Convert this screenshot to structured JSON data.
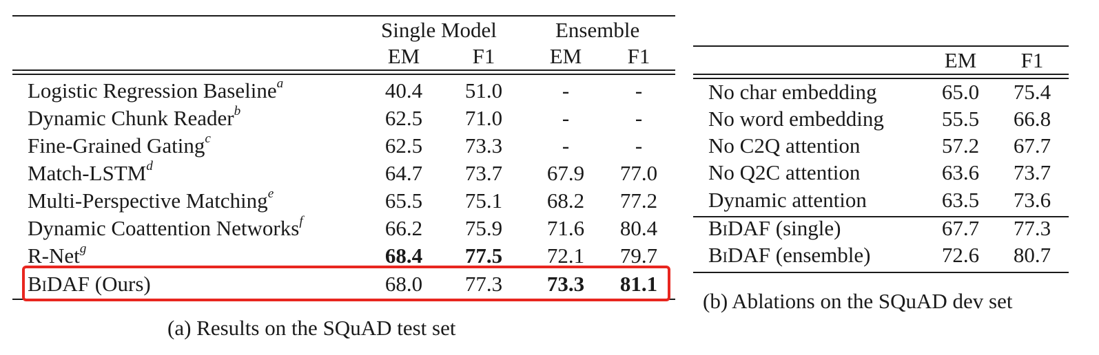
{
  "table_a": {
    "group_headers": [
      "Single Model",
      "Ensemble"
    ],
    "col_headers": [
      "EM",
      "F1",
      "EM",
      "F1"
    ],
    "rows": [
      {
        "name": "Logistic Regression Baseline",
        "sup": "a",
        "values": [
          "40.4",
          "51.0",
          "-",
          "-"
        ]
      },
      {
        "name": "Dynamic Chunk Reader",
        "sup": "b",
        "values": [
          "62.5",
          "71.0",
          "-",
          "-"
        ]
      },
      {
        "name": "Fine-Grained Gating",
        "sup": "c",
        "values": [
          "62.5",
          "73.3",
          "-",
          "-"
        ]
      },
      {
        "name": "Match-LSTM",
        "sup": "d",
        "values": [
          "64.7",
          "73.7",
          "67.9",
          "77.0"
        ]
      },
      {
        "name": "Multi-Perspective Matching",
        "sup": "e",
        "values": [
          "65.5",
          "75.1",
          "68.2",
          "77.2"
        ]
      },
      {
        "name": "Dynamic Coattention Networks",
        "sup": "f",
        "values": [
          "66.2",
          "75.9",
          "71.6",
          "80.4"
        ]
      },
      {
        "name": "R-Net",
        "sup": "g",
        "values": [
          "68.4",
          "77.5",
          "72.1",
          "79.7"
        ]
      }
    ],
    "ours": {
      "name_prefix": "BiDAF",
      "name_suffix": " (Ours)",
      "values": [
        "68.0",
        "77.3",
        "73.3",
        "81.1"
      ]
    },
    "caption": "(a) Results on the SQuAD test set"
  },
  "table_b": {
    "col_headers": [
      "EM",
      "F1"
    ],
    "rows": [
      {
        "name": "No char embedding",
        "values": [
          "65.0",
          "75.4"
        ]
      },
      {
        "name": "No word embedding",
        "values": [
          "55.5",
          "66.8"
        ]
      },
      {
        "name": "No C2Q attention",
        "values": [
          "57.2",
          "67.7"
        ]
      },
      {
        "name": "No Q2C attention",
        "values": [
          "63.6",
          "73.7"
        ]
      },
      {
        "name": "Dynamic attention",
        "values": [
          "63.5",
          "73.6"
        ]
      }
    ],
    "bidaf_rows": [
      {
        "name_prefix": "BiDAF",
        "name_suffix": " (single)",
        "values": [
          "67.7",
          "77.3"
        ]
      },
      {
        "name_prefix": "BiDAF",
        "name_suffix": " (ensemble)",
        "values": [
          "72.6",
          "80.7"
        ]
      }
    ],
    "caption": "(b) Ablations on the SQuAD dev set"
  },
  "colors": {
    "highlight": "#e8261f",
    "text": "#1a1a1a"
  }
}
